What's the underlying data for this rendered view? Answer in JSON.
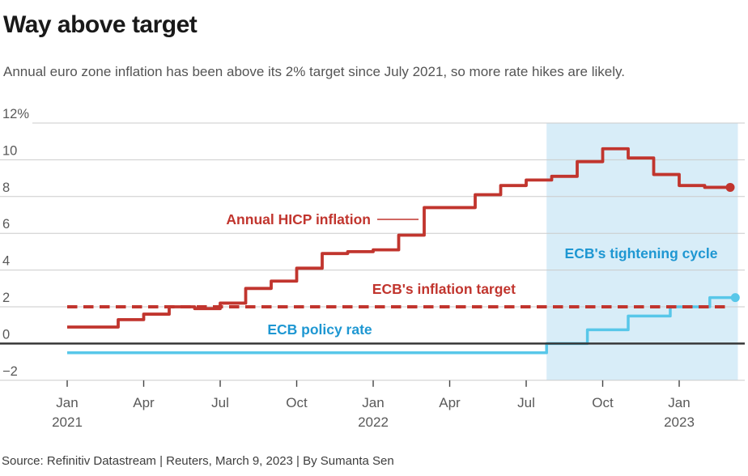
{
  "header": {
    "title": "Way above target",
    "subtitle": "Annual euro zone inflation has been above its 2% target since July 2021, so more rate hikes are likely."
  },
  "footer": {
    "source": "Source: Refinitiv Datastream | Reuters, March 9, 2023 | By Sumanta Sen"
  },
  "colors": {
    "hicp_red": "#c1352e",
    "policy_cyan": "#58c7e9",
    "blue_label": "#1e97d2",
    "band_fill": "#d8edf8",
    "gridline": "#cbcbcb",
    "zero_line": "#383838",
    "tick_mark": "#444444",
    "axis_text": "#595959"
  },
  "chart_data": {
    "type": "line",
    "subtype": "step",
    "title": "Way above target",
    "ylabel": "",
    "xlabel": "",
    "ylim": [
      -2,
      12
    ],
    "grid": "horizontal",
    "y_ticks": [
      {
        "value": 12,
        "label": "12%"
      },
      {
        "value": 10,
        "label": "10"
      },
      {
        "value": 8,
        "label": "8"
      },
      {
        "value": 6,
        "label": "6"
      },
      {
        "value": 4,
        "label": "4"
      },
      {
        "value": 2,
        "label": "2"
      },
      {
        "value": 0,
        "label": "0"
      },
      {
        "value": -2,
        "label": "−2"
      }
    ],
    "x_ticks": [
      {
        "month_index": 0,
        "label": "Jan",
        "sublabel": "2021"
      },
      {
        "month_index": 3,
        "label": "Apr"
      },
      {
        "month_index": 6,
        "label": "Jul"
      },
      {
        "month_index": 9,
        "label": "Oct"
      },
      {
        "month_index": 12,
        "label": "Jan",
        "sublabel": "2022"
      },
      {
        "month_index": 15,
        "label": "Apr"
      },
      {
        "month_index": 18,
        "label": "Jul"
      },
      {
        "month_index": 21,
        "label": "Oct"
      },
      {
        "month_index": 24,
        "label": "Jan",
        "sublabel": "2023"
      }
    ],
    "series": [
      {
        "name": "Annual HICP inflation",
        "style": "step-monthly",
        "color": "#c1352e",
        "start": "Jan 2021",
        "end": "Feb 2023",
        "values": [
          0.9,
          0.9,
          1.3,
          1.6,
          2.0,
          1.9,
          2.2,
          3.0,
          3.4,
          4.1,
          4.9,
          5.0,
          5.1,
          5.9,
          7.4,
          7.4,
          8.1,
          8.6,
          8.9,
          9.1,
          9.9,
          10.6,
          10.1,
          9.2,
          8.6,
          8.5
        ],
        "end_dot": true
      },
      {
        "name": "ECB policy rate",
        "style": "step-breakpoints",
        "color": "#58c7e9",
        "breakpoints": [
          {
            "month": 0,
            "rate": -0.5
          },
          {
            "month": 18.8,
            "rate": 0.0
          },
          {
            "month": 20.4,
            "rate": 0.75
          },
          {
            "month": 22.0,
            "rate": 1.5
          },
          {
            "month": 23.65,
            "rate": 2.0
          },
          {
            "month": 25.2,
            "rate": 2.5
          }
        ],
        "end_month": 26.2,
        "end_dot": true
      },
      {
        "name": "ECB's inflation target",
        "style": "dashed-horizontal",
        "color": "#c1352e",
        "value": 2,
        "start_month": 0,
        "end_month": 25.87
      }
    ],
    "band": {
      "label": "ECB's tightening cycle",
      "start_month": 18.8,
      "end_month": 26.3
    },
    "annotations": [
      {
        "id": "hicp",
        "text": "Annual HICP inflation"
      },
      {
        "id": "target",
        "text": "ECB's inflation target"
      },
      {
        "id": "policy",
        "text": "ECB policy rate"
      },
      {
        "id": "band",
        "text": "ECB's tightening cycle"
      }
    ]
  }
}
